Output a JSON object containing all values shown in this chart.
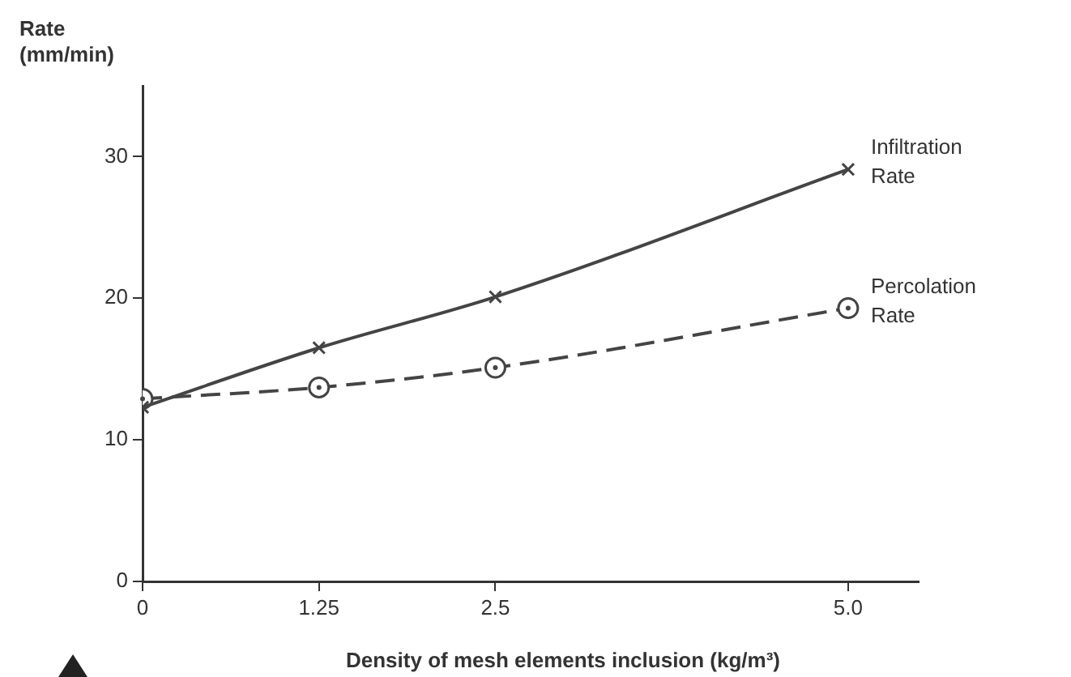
{
  "chart_data": {
    "type": "line",
    "xlabel": "Density of mesh elements inclusion (kg/m³)",
    "ylabel": "Rate (mm/min)",
    "xlim": [
      0,
      5.5
    ],
    "xticks": [
      0,
      1.25,
      2.5,
      {
        "value": 5,
        "label": "5.0"
      }
    ],
    "ylim": [
      0,
      35
    ],
    "yticks": [
      0,
      10,
      20,
      30
    ],
    "x": [
      0,
      1.25,
      2.5,
      5
    ],
    "series": [
      {
        "name": "Infiltration Rate",
        "color": "#444444",
        "values": [
          12.3,
          16.5,
          20.1,
          29.1
        ],
        "marker": "cross",
        "line_style": "solid"
      },
      {
        "name": "Percolation Rate",
        "color": "#444444",
        "values": [
          12.9,
          13.7,
          15.1,
          19.3
        ],
        "marker": "circle",
        "line_style": "dashed"
      }
    ]
  }
}
